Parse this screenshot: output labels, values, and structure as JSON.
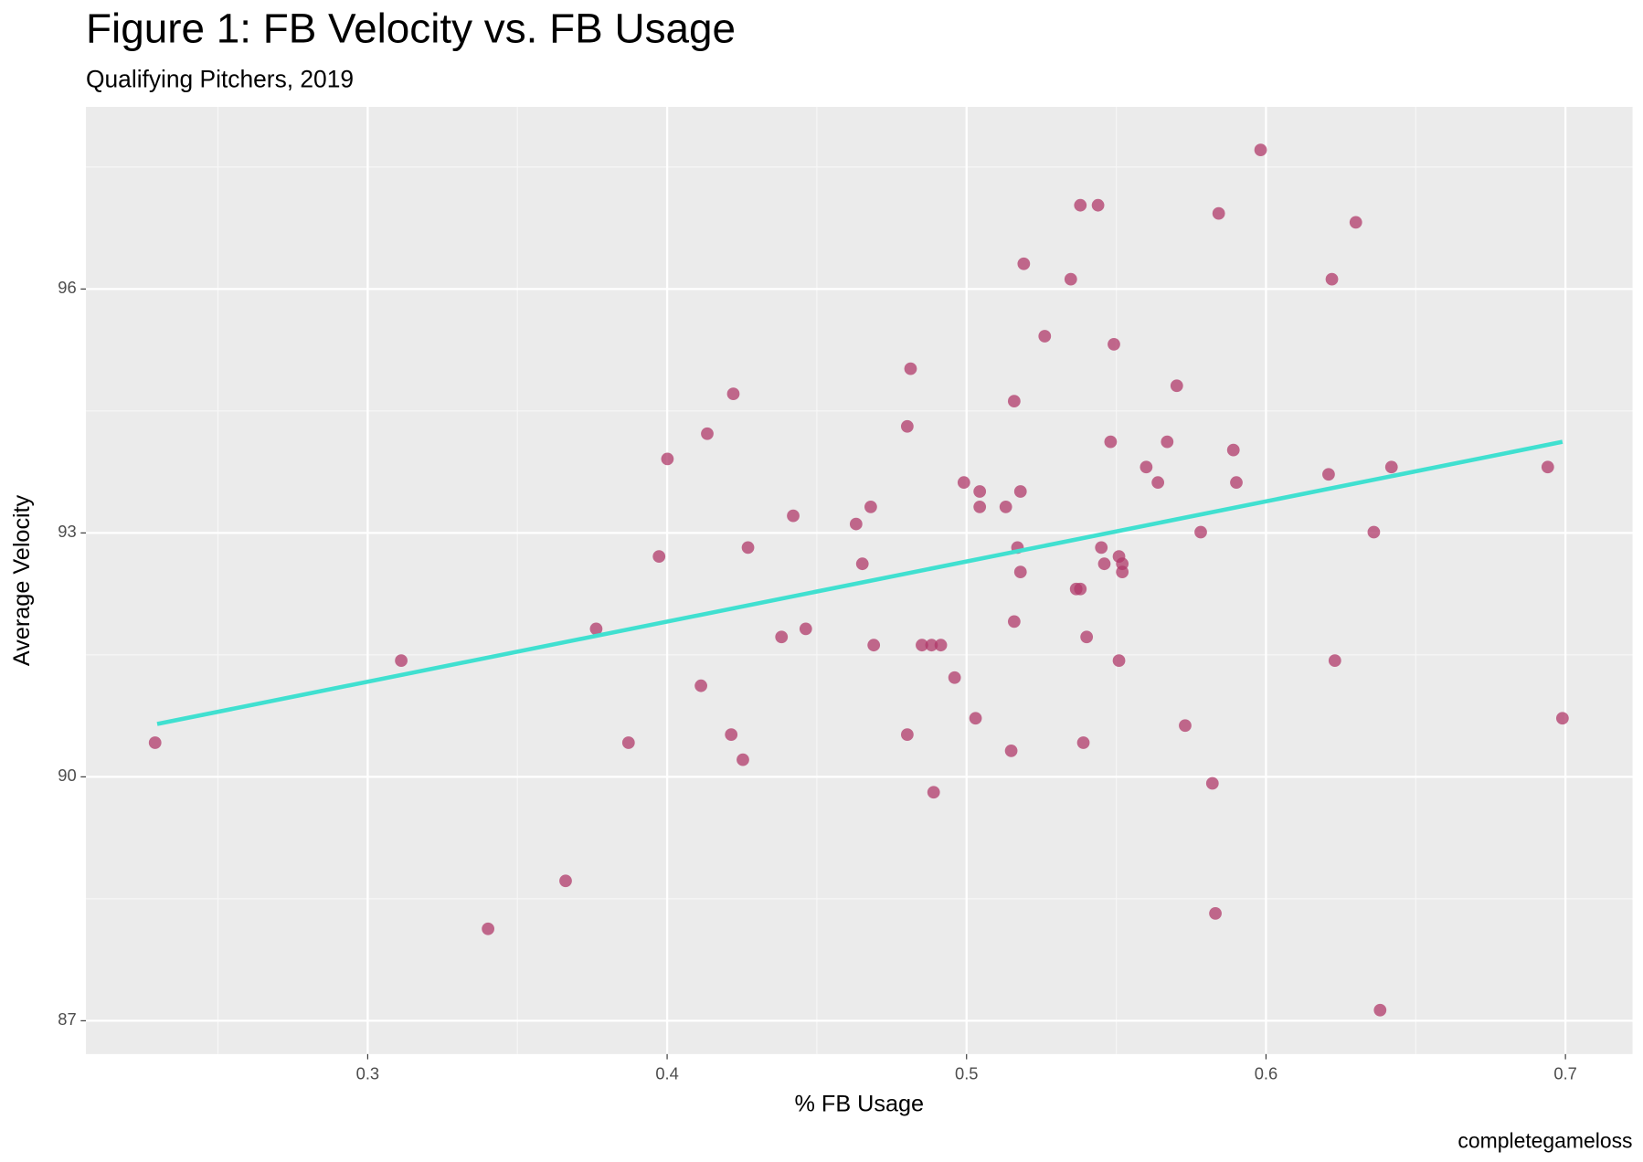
{
  "chart_data": {
    "type": "scatter",
    "title": "Figure 1: FB Velocity vs. FB Usage",
    "subtitle": "Qualifying Pitchers, 2019",
    "x_label": "% FB Usage",
    "y_label": "Average Velocity",
    "caption": "completegameloss",
    "xlim": [
      0.2059,
      0.7224
    ],
    "ylim": [
      86.59,
      98.24
    ],
    "xticks": [
      0.3,
      0.4,
      0.5,
      0.6,
      0.7
    ],
    "yticks": [
      87,
      90,
      93,
      96
    ],
    "minor_xticks": [
      0.25,
      0.35,
      0.45,
      0.55,
      0.65
    ],
    "minor_yticks": [
      88.5,
      91.5,
      94.5,
      97.5
    ],
    "grid": true,
    "series": [
      {
        "color": "#b03a6a",
        "x": [
          0.229,
          0.3112,
          0.3402,
          0.3661,
          0.3763,
          0.3871,
          0.3973,
          0.4001,
          0.4113,
          0.4134,
          0.4214,
          0.4221,
          0.4253,
          0.427,
          0.4382,
          0.4421,
          0.4463,
          0.4631,
          0.4652,
          0.468,
          0.469,
          0.4802,
          0.4802,
          0.4813,
          0.4851,
          0.4883,
          0.489,
          0.4914,
          0.496,
          0.4991,
          0.503,
          0.5044,
          0.5044,
          0.5131,
          0.5149,
          0.5159,
          0.5159,
          0.517,
          0.518,
          0.518,
          0.5191,
          0.5261,
          0.5348,
          0.5366,
          0.538,
          0.538,
          0.539,
          0.5401,
          0.5439,
          0.545,
          0.546,
          0.5481,
          0.5492,
          0.5509,
          0.5509,
          0.552,
          0.552,
          0.56,
          0.5639,
          0.567,
          0.5702,
          0.573,
          0.5782,
          0.5821,
          0.5831,
          0.5842,
          0.5891,
          0.5901,
          0.5982,
          0.6209,
          0.622,
          0.623,
          0.63,
          0.636,
          0.6381,
          0.6419,
          0.6941,
          0.699
        ],
        "values": [
          90.42,
          91.43,
          88.13,
          88.72,
          91.82,
          90.42,
          92.71,
          93.91,
          91.12,
          94.22,
          90.52,
          94.71,
          90.21,
          92.82,
          91.72,
          93.21,
          91.82,
          93.11,
          92.62,
          93.32,
          91.62,
          90.52,
          94.31,
          95.02,
          91.62,
          91.62,
          89.81,
          91.62,
          91.22,
          93.62,
          90.72,
          93.51,
          93.32,
          93.32,
          90.32,
          91.91,
          94.62,
          92.82,
          92.52,
          93.51,
          96.31,
          95.42,
          96.12,
          92.31,
          92.31,
          97.03,
          90.42,
          91.72,
          97.03,
          92.82,
          92.62,
          94.12,
          95.32,
          92.71,
          91.43,
          92.62,
          92.52,
          93.81,
          93.62,
          94.12,
          94.81,
          90.63,
          93.01,
          89.92,
          88.32,
          96.93,
          94.02,
          93.62,
          97.71,
          93.72,
          96.12,
          91.43,
          96.82,
          93.01,
          87.13,
          93.81,
          93.81,
          90.72
        ]
      }
    ],
    "trend_line": {
      "color": "#40e0d0",
      "x": [
        0.2297,
        0.699
      ],
      "values": [
        90.65,
        94.12
      ]
    }
  }
}
